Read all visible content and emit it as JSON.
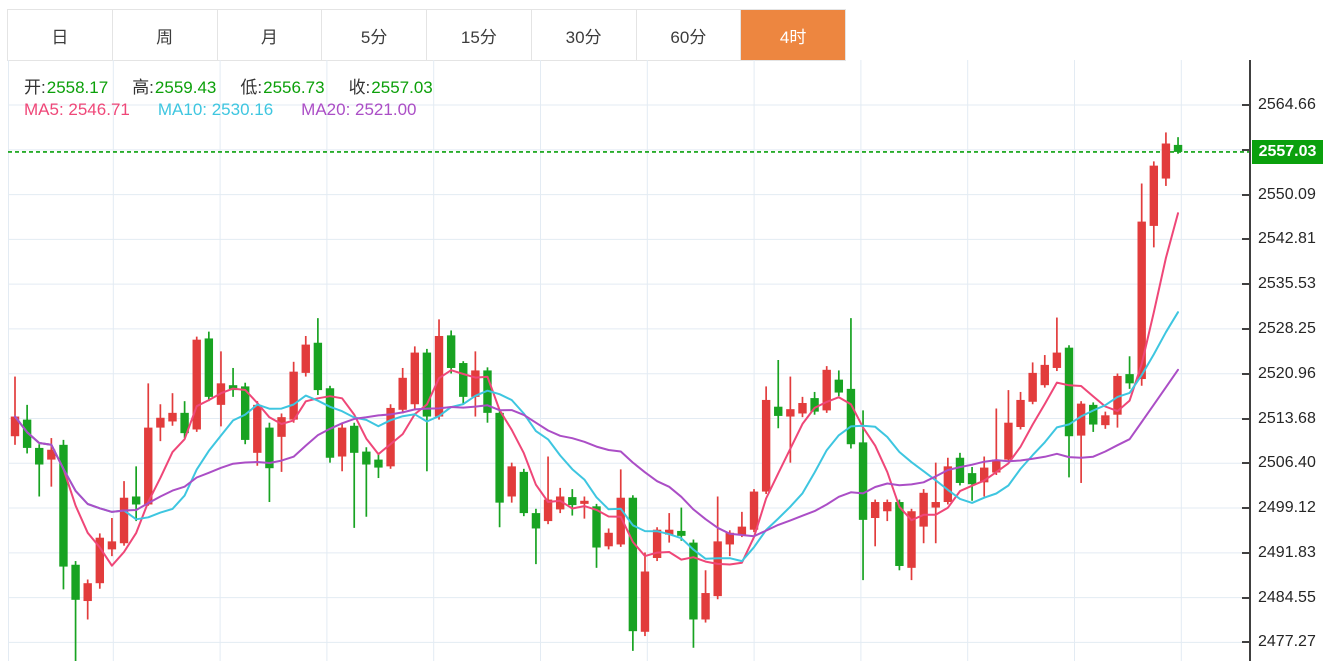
{
  "header_tabs": {
    "items": [
      {
        "label": "日",
        "selected": false
      },
      {
        "label": "周",
        "selected": false
      },
      {
        "label": "月",
        "selected": false
      },
      {
        "label": "5分",
        "selected": false
      },
      {
        "label": "15分",
        "selected": false
      },
      {
        "label": "30分",
        "selected": false
      },
      {
        "label": "60分",
        "selected": false
      },
      {
        "label": "4时",
        "selected": true
      }
    ]
  },
  "info_bar": {
    "ohlc": [
      {
        "name": "open",
        "label": "开:",
        "value": "2558.17"
      },
      {
        "name": "high",
        "label": "高:",
        "value": "2559.43"
      },
      {
        "name": "low",
        "label": "低:",
        "value": "2556.73"
      },
      {
        "name": "close",
        "label": "收:",
        "value": "2557.03"
      }
    ]
  },
  "ma_bar": {
    "items": [
      {
        "name": "ma5",
        "label": "MA5:",
        "value": "2546.71",
        "color": "#ef4778"
      },
      {
        "name": "ma10",
        "label": "MA10:",
        "value": "2530.16",
        "color": "#3ec6e0"
      },
      {
        "name": "ma20",
        "label": "MA20:",
        "value": "2521.00",
        "color": "#ab4ec6"
      }
    ]
  },
  "y_axis": {
    "labels": [
      {
        "text": "2564.66",
        "price": 2564.66
      },
      {
        "text": "2550.09",
        "price": 2550.09
      },
      {
        "text": "2542.81",
        "price": 2542.81
      },
      {
        "text": "2535.53",
        "price": 2535.53
      },
      {
        "text": "2528.25",
        "price": 2528.25
      },
      {
        "text": "2520.96",
        "price": 2520.96
      },
      {
        "text": "2513.68",
        "price": 2513.68
      },
      {
        "text": "2506.40",
        "price": 2506.4
      },
      {
        "text": "2499.12",
        "price": 2499.12
      },
      {
        "text": "2491.83",
        "price": 2491.83
      },
      {
        "text": "2484.55",
        "price": 2484.55
      },
      {
        "text": "2477.27",
        "price": 2477.27
      }
    ],
    "gridline_prices": [
      2564.66,
      2557.37,
      2550.09,
      2542.81,
      2535.53,
      2528.25,
      2520.96,
      2513.68,
      2506.4,
      2499.12,
      2491.83,
      2484.55,
      2477.27
    ],
    "current_price_badge": {
      "text": "2557.03",
      "price": 2557.03
    }
  },
  "colors": {
    "up": "#e23c3c",
    "down": "#18a322",
    "price_line": "#0aa00d",
    "badge_bg": "#0aa00d",
    "badge_text": "#ffffff",
    "tab_selected_bg": "#ed8640",
    "grid": "#e3ebf3",
    "axis_line": "#404040",
    "axis_text": "#262626",
    "label_text": "#333333",
    "ohlc_value": "#0ca00a",
    "ma5": "#ef4778",
    "ma10": "#3ec6e0",
    "ma20": "#ab4ec6"
  },
  "chart_data": {
    "type": "candlestick",
    "timeframe": "4时",
    "ohlc_format": [
      "open",
      "high",
      "low",
      "close"
    ],
    "current_price": 2557.03,
    "ma_periods": [
      5,
      10,
      20
    ],
    "visible_price_range": [
      2474.3,
      2572.0
    ],
    "y_tick_step": 7.28,
    "candles": [
      [
        2510.8,
        2520.5,
        2509.4,
        2514.0
      ],
      [
        2513.5,
        2515.9,
        2508.0,
        2508.9
      ],
      [
        2508.9,
        2509.5,
        2501.0,
        2506.2
      ],
      [
        2507.0,
        2510.5,
        2502.6,
        2508.6
      ],
      [
        2509.4,
        2510.2,
        2485.9,
        2489.6
      ],
      [
        2489.9,
        2490.5,
        2472.5,
        2484.2
      ],
      [
        2484.0,
        2487.5,
        2481.0,
        2486.9
      ],
      [
        2486.9,
        2495.0,
        2486.0,
        2494.3
      ],
      [
        2492.4,
        2497.5,
        2491.3,
        2493.7
      ],
      [
        2493.4,
        2503.5,
        2493.0,
        2500.8
      ],
      [
        2501.0,
        2505.9,
        2497.0,
        2499.7
      ],
      [
        2499.7,
        2519.4,
        2499.5,
        2512.2
      ],
      [
        2512.2,
        2516.0,
        2510.0,
        2513.8
      ],
      [
        2513.2,
        2517.8,
        2512.5,
        2514.6
      ],
      [
        2514.6,
        2516.5,
        2510.5,
        2511.3
      ],
      [
        2511.9,
        2527.0,
        2511.5,
        2526.5
      ],
      [
        2526.7,
        2527.8,
        2516.5,
        2517.2
      ],
      [
        2515.9,
        2524.6,
        2512.4,
        2519.4
      ],
      [
        2519.1,
        2521.9,
        2517.2,
        2518.3
      ],
      [
        2518.9,
        2519.5,
        2509.5,
        2510.2
      ],
      [
        2508.1,
        2516.5,
        2506.0,
        2515.9
      ],
      [
        2512.2,
        2513.0,
        2500.1,
        2505.6
      ],
      [
        2510.7,
        2514.5,
        2505.0,
        2513.9
      ],
      [
        2513.5,
        2522.9,
        2513.0,
        2521.3
      ],
      [
        2521.1,
        2527.1,
        2520.5,
        2525.7
      ],
      [
        2526.0,
        2530.0,
        2517.5,
        2518.3
      ],
      [
        2518.6,
        2519.0,
        2506.5,
        2507.3
      ],
      [
        2507.5,
        2513.0,
        2505.1,
        2512.2
      ],
      [
        2512.5,
        2513.0,
        2495.9,
        2508.1
      ],
      [
        2508.3,
        2509.0,
        2497.7,
        2506.2
      ],
      [
        2507.0,
        2508.0,
        2504.0,
        2505.7
      ],
      [
        2505.9,
        2516.0,
        2505.5,
        2515.4
      ],
      [
        2515.1,
        2521.9,
        2514.5,
        2520.3
      ],
      [
        2516.0,
        2525.4,
        2515.0,
        2524.4
      ],
      [
        2524.4,
        2525.0,
        2505.1,
        2514.0
      ],
      [
        2514.0,
        2529.8,
        2513.5,
        2527.1
      ],
      [
        2527.2,
        2528.0,
        2521.0,
        2521.9
      ],
      [
        2522.7,
        2523.0,
        2516.0,
        2517.2
      ],
      [
        2517.2,
        2524.6,
        2514.0,
        2521.5
      ],
      [
        2521.5,
        2522.0,
        2513.0,
        2514.6
      ],
      [
        2514.6,
        2515.0,
        2496.0,
        2500.0
      ],
      [
        2501.0,
        2506.5,
        2500.0,
        2505.9
      ],
      [
        2505.0,
        2505.5,
        2497.8,
        2498.3
      ],
      [
        2498.3,
        2499.0,
        2490.0,
        2495.8
      ],
      [
        2497.0,
        2507.5,
        2496.5,
        2500.5
      ],
      [
        2498.9,
        2502.4,
        2498.3,
        2501.0
      ],
      [
        2500.9,
        2502.2,
        2497.9,
        2499.6
      ],
      [
        2499.8,
        2501.0,
        2497.4,
        2500.3
      ],
      [
        2499.4,
        2499.8,
        2489.4,
        2492.7
      ],
      [
        2492.9,
        2495.8,
        2492.4,
        2495.1
      ],
      [
        2493.2,
        2505.4,
        2492.8,
        2500.8
      ],
      [
        2500.8,
        2501.2,
        2475.9,
        2479.1
      ],
      [
        2479.0,
        2491.9,
        2478.3,
        2488.8
      ],
      [
        2491.0,
        2496.0,
        2490.5,
        2495.6
      ],
      [
        2494.8,
        2498.3,
        2493.5,
        2495.6
      ],
      [
        2495.4,
        2499.2,
        2493.8,
        2494.6
      ],
      [
        2493.5,
        2494.0,
        2476.4,
        2481.0
      ],
      [
        2481.0,
        2489.0,
        2480.5,
        2485.3
      ],
      [
        2484.8,
        2501.0,
        2484.3,
        2493.7
      ],
      [
        2493.2,
        2495.5,
        2491.3,
        2495.1
      ],
      [
        2494.8,
        2498.5,
        2494.4,
        2496.1
      ],
      [
        2495.6,
        2502.2,
        2495.2,
        2501.8
      ],
      [
        2501.8,
        2518.9,
        2501.4,
        2516.7
      ],
      [
        2515.6,
        2523.2,
        2512.1,
        2514.1
      ],
      [
        2514.0,
        2520.5,
        2506.5,
        2515.2
      ],
      [
        2514.5,
        2517.2,
        2513.9,
        2516.2
      ],
      [
        2517.0,
        2518.0,
        2514.3,
        2514.8
      ],
      [
        2515.0,
        2522.2,
        2514.6,
        2521.6
      ],
      [
        2520.0,
        2521.5,
        2517.3,
        2517.9
      ],
      [
        2518.5,
        2530.0,
        2508.8,
        2509.5
      ],
      [
        2509.8,
        2515.0,
        2487.4,
        2497.2
      ],
      [
        2497.5,
        2500.5,
        2492.9,
        2500.1
      ],
      [
        2498.6,
        2500.5,
        2497.0,
        2500.1
      ],
      [
        2500.1,
        2500.5,
        2489.0,
        2489.7
      ],
      [
        2489.4,
        2499.0,
        2487.4,
        2498.6
      ],
      [
        2496.1,
        2502.2,
        2493.4,
        2501.6
      ],
      [
        2499.2,
        2506.5,
        2493.4,
        2500.1
      ],
      [
        2500.1,
        2507.3,
        2499.7,
        2505.9
      ],
      [
        2507.3,
        2508.1,
        2502.8,
        2503.2
      ],
      [
        2504.8,
        2505.8,
        2500.3,
        2503.0
      ],
      [
        2503.3,
        2507.5,
        2501.0,
        2505.7
      ],
      [
        2504.9,
        2515.3,
        2504.5,
        2507.0
      ],
      [
        2507.0,
        2518.3,
        2506.6,
        2513.0
      ],
      [
        2512.3,
        2518.0,
        2511.9,
        2516.7
      ],
      [
        2516.4,
        2522.8,
        2516.0,
        2521.1
      ],
      [
        2519.1,
        2524.0,
        2518.7,
        2522.4
      ],
      [
        2521.9,
        2530.1,
        2521.4,
        2524.4
      ],
      [
        2525.2,
        2525.6,
        2504.1,
        2510.8
      ],
      [
        2510.9,
        2516.5,
        2503.2,
        2516.1
      ],
      [
        2515.9,
        2516.3,
        2511.5,
        2512.7
      ],
      [
        2512.6,
        2514.8,
        2512.0,
        2514.2
      ],
      [
        2514.3,
        2521.0,
        2512.2,
        2520.6
      ],
      [
        2520.9,
        2523.8,
        2518.5,
        2519.4
      ],
      [
        2520.1,
        2551.9,
        2519.0,
        2545.7
      ],
      [
        2545.0,
        2555.5,
        2541.5,
        2554.8
      ],
      [
        2552.7,
        2560.2,
        2551.5,
        2558.4
      ],
      [
        2558.17,
        2559.43,
        2556.73,
        2557.03
      ]
    ]
  }
}
